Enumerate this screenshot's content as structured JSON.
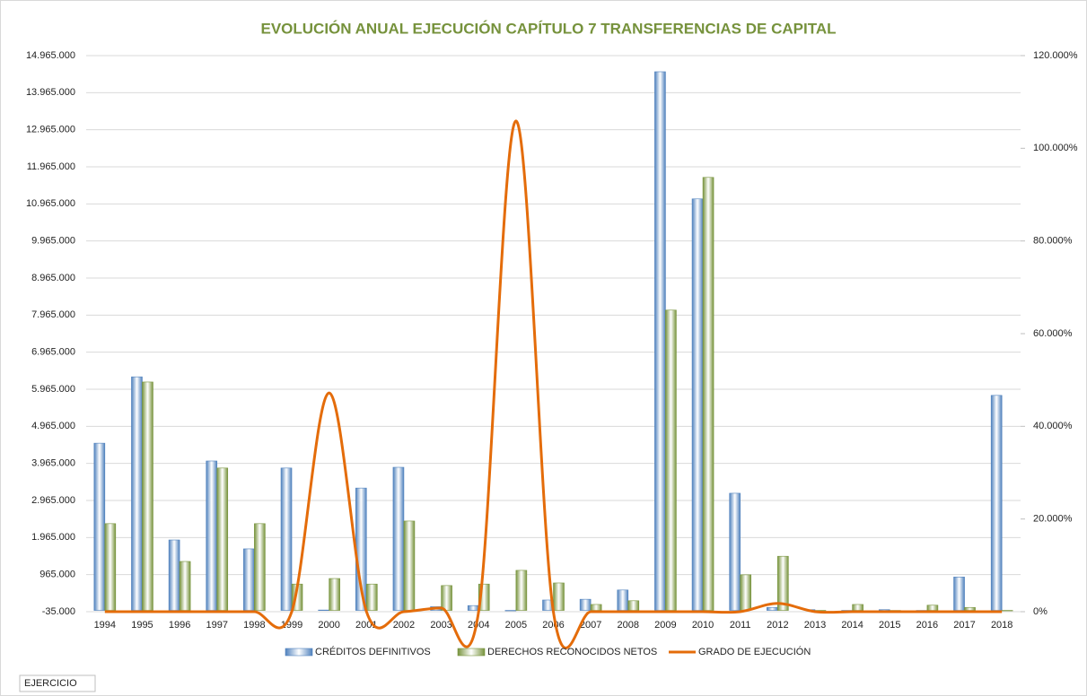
{
  "chart_data": {
    "type": "bar",
    "title": "EVOLUCIÓN ANUAL EJECUCIÓN CAPÍTULO 7 TRANSFERENCIAS DE CAPITAL",
    "x_label": "EJERCICIO",
    "categories": [
      "1994",
      "1995",
      "1996",
      "1997",
      "1998",
      "1999",
      "2000",
      "2001",
      "2002",
      "2003",
      "2004",
      "2005",
      "2006",
      "2007",
      "2008",
      "2009",
      "2010",
      "2011",
      "2012",
      "2013",
      "2014",
      "2015",
      "2016",
      "2017",
      "2018"
    ],
    "series": [
      {
        "name": "CRÉDITOS DEFINITIVOS",
        "type": "bar",
        "color": "#4f81bd",
        "values": [
          4510000,
          6300000,
          1900000,
          4030000,
          1660000,
          3840000,
          10000,
          3300000,
          3860000,
          100000,
          130000,
          0,
          280000,
          300000,
          550000,
          14530000,
          11100000,
          3160000,
          80000,
          20000,
          0,
          20000,
          0,
          900000,
          5800000
        ]
      },
      {
        "name": "DERECHOS RECONOCIDOS NETOS",
        "type": "bar",
        "color": "#77933c",
        "values": [
          2340000,
          6160000,
          1320000,
          3840000,
          2340000,
          710000,
          860000,
          710000,
          2410000,
          670000,
          710000,
          1080000,
          740000,
          160000,
          260000,
          8100000,
          11680000,
          960000,
          1460000,
          0,
          160000,
          0,
          140000,
          80000,
          0
        ]
      },
      {
        "name": "GRADO DE EJECUCIÓN",
        "type": "line",
        "axis": "y2",
        "color": "#e46c0a",
        "values": [
          0,
          0,
          0,
          0,
          0,
          0,
          47.2,
          0,
          0,
          0.8,
          0,
          105.9,
          0,
          0,
          0,
          0,
          0,
          0,
          1.8,
          0,
          0,
          0,
          0,
          0,
          0
        ]
      }
    ],
    "ylim": [
      -35000,
      14965000
    ],
    "yticks": [
      {
        "value": -35000,
        "label": "-35.000"
      },
      {
        "value": 965000,
        "label": "965.000"
      },
      {
        "value": 1965000,
        "label": "1.965.000"
      },
      {
        "value": 2965000,
        "label": "2.965.000"
      },
      {
        "value": 3965000,
        "label": "3.965.000"
      },
      {
        "value": 4965000,
        "label": "4.965.000"
      },
      {
        "value": 5965000,
        "label": "5.965.000"
      },
      {
        "value": 6965000,
        "label": "6.965.000"
      },
      {
        "value": 7965000,
        "label": "7.965.000"
      },
      {
        "value": 8965000,
        "label": "8.965.000"
      },
      {
        "value": 9965000,
        "label": "9.965.000"
      },
      {
        "value": 10965000,
        "label": "10.965.000"
      },
      {
        "value": 11965000,
        "label": "11.965.000"
      },
      {
        "value": 12965000,
        "label": "12.965.000"
      },
      {
        "value": 13965000,
        "label": "13.965.000"
      },
      {
        "value": 14965000,
        "label": "14.965.000"
      }
    ],
    "y2lim": [
      0,
      120
    ],
    "y2ticks": [
      {
        "value": 0,
        "label": "0%"
      },
      {
        "value": 20,
        "label": "20.000%"
      },
      {
        "value": 40,
        "label": "40.000%"
      },
      {
        "value": 60,
        "label": "60.000%"
      },
      {
        "value": 80,
        "label": "80.000%"
      },
      {
        "value": 100,
        "label": "100.000%"
      },
      {
        "value": 120,
        "label": "120.000%"
      }
    ],
    "grid": true,
    "legend": "bottom"
  }
}
